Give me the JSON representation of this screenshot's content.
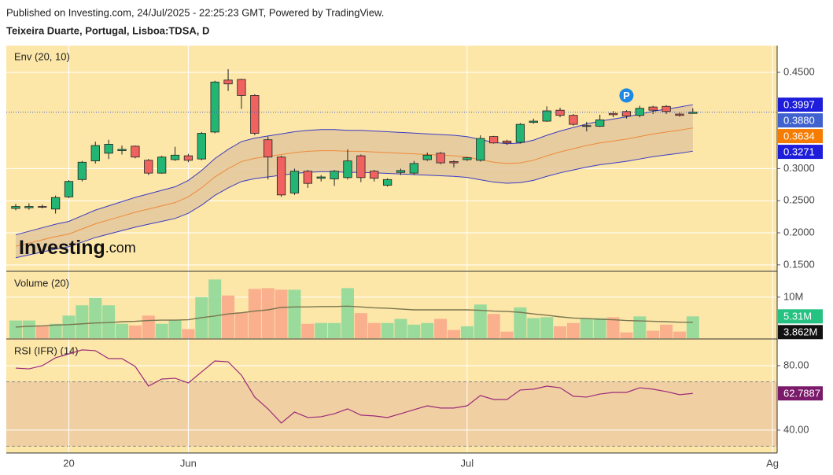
{
  "header": {
    "published": "Published on Investing.com, 24/Jul/2025 - 22:25:23 GMT, Powered by TradingView.",
    "instrument": "Teixeira Duarte, Portugal, Lisboa:TDSA, D"
  },
  "logo": {
    "brand": "Investing",
    "suffix": ".com"
  },
  "chart_data": [
    {
      "type": "candlestick",
      "title": "Env (20, 10)",
      "xlim": [
        -0.71,
        57.35
      ],
      "xticks": [
        {
          "value": 4,
          "label": "20"
        },
        {
          "value": 13,
          "label": "Jun"
        },
        {
          "value": 34,
          "label": "Jul"
        },
        {
          "value": 57,
          "label": "Ag"
        }
      ],
      "ylim": [
        0.1412,
        0.4917
      ],
      "yticks": [
        {
          "value": 0.45,
          "label": "0.4500"
        },
        {
          "value": 0.3,
          "label": "0.3000"
        },
        {
          "value": 0.25,
          "label": "0.2500"
        },
        {
          "value": 0.2,
          "label": "0.2000"
        },
        {
          "value": 0.15,
          "label": "0.1500"
        }
      ],
      "colors": {
        "up": "#22b573",
        "down": "#f0625f"
      },
      "open": [
        0.238,
        0.239,
        0.241,
        0.237,
        0.256,
        0.283,
        0.312,
        0.324,
        0.328,
        0.335,
        0.313,
        0.293,
        0.314,
        0.32,
        0.315,
        0.357,
        0.438,
        0.439,
        0.414,
        0.345,
        0.318,
        0.262,
        0.296,
        0.285,
        0.284,
        0.286,
        0.32,
        0.296,
        0.274,
        0.294,
        0.293,
        0.314,
        0.324,
        0.311,
        0.314,
        0.313,
        0.35,
        0.343,
        0.341,
        0.372,
        0.374,
        0.391,
        0.383,
        0.366,
        0.366,
        0.386,
        0.389,
        0.383,
        0.396,
        0.397,
        0.385,
        0.386
      ],
      "high": [
        0.245,
        0.246,
        0.244,
        0.258,
        0.282,
        0.312,
        0.342,
        0.345,
        0.336,
        0.336,
        0.315,
        0.32,
        0.334,
        0.323,
        0.357,
        0.437,
        0.455,
        0.44,
        0.416,
        0.35,
        0.32,
        0.3,
        0.298,
        0.29,
        0.298,
        0.33,
        0.322,
        0.298,
        0.285,
        0.3,
        0.312,
        0.325,
        0.326,
        0.313,
        0.318,
        0.352,
        0.351,
        0.345,
        0.371,
        0.378,
        0.397,
        0.395,
        0.385,
        0.373,
        0.384,
        0.39,
        0.391,
        0.398,
        0.398,
        0.399,
        0.387,
        0.394
      ],
      "low": [
        0.235,
        0.236,
        0.238,
        0.23,
        0.254,
        0.28,
        0.308,
        0.315,
        0.322,
        0.316,
        0.29,
        0.292,
        0.312,
        0.31,
        0.313,
        0.355,
        0.421,
        0.393,
        0.352,
        0.283,
        0.256,
        0.259,
        0.27,
        0.28,
        0.273,
        0.283,
        0.279,
        0.28,
        0.272,
        0.29,
        0.29,
        0.312,
        0.307,
        0.302,
        0.312,
        0.311,
        0.339,
        0.337,
        0.339,
        0.37,
        0.373,
        0.38,
        0.367,
        0.358,
        0.365,
        0.38,
        0.378,
        0.38,
        0.385,
        0.385,
        0.381,
        0.386
      ],
      "close": [
        0.241,
        0.241,
        0.24,
        0.255,
        0.28,
        0.31,
        0.336,
        0.338,
        0.33,
        0.318,
        0.293,
        0.318,
        0.321,
        0.313,
        0.355,
        0.435,
        0.432,
        0.414,
        0.355,
        0.318,
        0.259,
        0.296,
        0.277,
        0.287,
        0.296,
        0.312,
        0.286,
        0.285,
        0.283,
        0.297,
        0.308,
        0.321,
        0.309,
        0.309,
        0.317,
        0.347,
        0.34,
        0.34,
        0.369,
        0.374,
        0.39,
        0.383,
        0.369,
        0.367,
        0.376,
        0.384,
        0.382,
        0.394,
        0.391,
        0.389,
        0.383,
        0.388
      ],
      "envelope": {
        "basis": [
          0.179,
          0.184,
          0.189,
          0.194,
          0.198,
          0.206,
          0.214,
          0.22,
          0.226,
          0.232,
          0.237,
          0.242,
          0.247,
          0.256,
          0.27,
          0.287,
          0.3,
          0.311,
          0.316,
          0.319,
          0.322,
          0.325,
          0.327,
          0.328,
          0.328,
          0.327,
          0.327,
          0.326,
          0.325,
          0.324,
          0.323,
          0.322,
          0.321,
          0.32,
          0.318,
          0.314,
          0.31,
          0.308,
          0.309,
          0.313,
          0.32,
          0.326,
          0.331,
          0.336,
          0.34,
          0.343,
          0.346,
          0.35,
          0.354,
          0.357,
          0.36,
          0.3634
        ],
        "upper": [
          0.1969,
          0.2024,
          0.2079,
          0.2134,
          0.2178,
          0.2266,
          0.2354,
          0.242,
          0.2486,
          0.2552,
          0.2607,
          0.2662,
          0.2717,
          0.2816,
          0.297,
          0.3157,
          0.33,
          0.3421,
          0.3476,
          0.3509,
          0.3542,
          0.3575,
          0.3597,
          0.3608,
          0.3608,
          0.3597,
          0.3597,
          0.3586,
          0.3575,
          0.3564,
          0.3553,
          0.3542,
          0.3531,
          0.352,
          0.3498,
          0.3454,
          0.341,
          0.3388,
          0.3399,
          0.3443,
          0.352,
          0.3586,
          0.3641,
          0.3696,
          0.374,
          0.3773,
          0.3806,
          0.385,
          0.3894,
          0.3927,
          0.396,
          0.3997
        ],
        "lower": [
          0.1611,
          0.1656,
          0.1701,
          0.1746,
          0.1782,
          0.1854,
          0.1926,
          0.198,
          0.2034,
          0.2088,
          0.2133,
          0.2178,
          0.2223,
          0.2304,
          0.243,
          0.2583,
          0.27,
          0.2799,
          0.2844,
          0.2871,
          0.2898,
          0.2925,
          0.2943,
          0.2952,
          0.2952,
          0.2943,
          0.2943,
          0.2934,
          0.2925,
          0.2916,
          0.2907,
          0.2898,
          0.2889,
          0.288,
          0.2862,
          0.2826,
          0.279,
          0.2772,
          0.2781,
          0.2817,
          0.288,
          0.2934,
          0.2979,
          0.3024,
          0.306,
          0.3087,
          0.3114,
          0.315,
          0.3186,
          0.3213,
          0.324,
          0.3271
        ],
        "colors": {
          "basis": "#f08a3a",
          "band": "#3b3bc4",
          "fill": "#e2c79d"
        }
      },
      "price_labels": [
        {
          "value": 0.3997,
          "label": "0.3997",
          "color": "#1d1ddb"
        },
        {
          "value": 0.388,
          "label": "0.3880",
          "color": "#4062cf"
        },
        {
          "value": 0.3634,
          "label": "0.3634",
          "color": "#f57c00"
        },
        {
          "value": 0.3271,
          "label": "0.3271",
          "color": "#1d1ddb"
        }
      ],
      "marker": {
        "x": 46,
        "y": 0.414,
        "label": "P",
        "color": "#1e88e5"
      }
    },
    {
      "type": "bar",
      "title": "Volume (20)",
      "ylim": [
        0,
        16100000
      ],
      "yticks": [
        {
          "value": 10000000,
          "label": "10M"
        }
      ],
      "colors": {
        "up": "#8fd99a",
        "down": "#f9a98a",
        "ma": "#7a7650"
      },
      "values": [
        4300000,
        4300000,
        2900000,
        3500000,
        5500000,
        8000000,
        9800000,
        8000000,
        3500000,
        3100000,
        5500000,
        3500000,
        4500000,
        2200000,
        10000000,
        14300000,
        10400000,
        6300000,
        12000000,
        12200000,
        11800000,
        11800000,
        3500000,
        3700000,
        3700000,
        12200000,
        6100000,
        3700000,
        3700000,
        4700000,
        3300000,
        3700000,
        4700000,
        2000000,
        2900000,
        8200000,
        5900000,
        1600000,
        7500000,
        4900000,
        5100000,
        2900000,
        3700000,
        4700000,
        4900000,
        5100000,
        1400000,
        5300000,
        1800000,
        3300000,
        1600000,
        5310000
      ],
      "ma": [
        2700000,
        2900000,
        3000000,
        3200000,
        3300000,
        3500000,
        3700000,
        3800000,
        4000000,
        4100000,
        4300000,
        4400000,
        4400000,
        4500000,
        5000000,
        5400000,
        5900000,
        6200000,
        6600000,
        6900000,
        7500000,
        7600000,
        7600000,
        7700000,
        7700000,
        7800000,
        7600000,
        7400000,
        7300000,
        7100000,
        6900000,
        6900000,
        6900000,
        6900000,
        6900000,
        6800000,
        6600000,
        6500000,
        6300000,
        5900000,
        5600000,
        5200000,
        4900000,
        4800000,
        4600000,
        4500000,
        4300000,
        4200000,
        4100000,
        4000000,
        3900000,
        3862000
      ],
      "last_labels": [
        {
          "value": 5310000,
          "label": "5.31M",
          "color": "#26c281"
        },
        {
          "value": 3862000,
          "label": "3.862M",
          "color": "#111111"
        }
      ]
    },
    {
      "type": "line",
      "title": "RSI (IFR) (14)",
      "ylim": [
        26.3,
        96.1
      ],
      "yticks": [
        {
          "value": 80,
          "label": "80.00"
        },
        {
          "value": 40,
          "label": "40.00"
        }
      ],
      "bands": [
        70,
        30
      ],
      "colors": {
        "line": "#9c2a7a",
        "band": "#f0cfa2"
      },
      "values": [
        78.5,
        78,
        80,
        84.9,
        87.3,
        89.8,
        89.3,
        84.4,
        84.4,
        79.5,
        67.3,
        71.7,
        72.2,
        69.3,
        76.1,
        82.9,
        82.4,
        74.1,
        60.5,
        53.2,
        44.4,
        51.2,
        47.8,
        48.3,
        50.2,
        53.2,
        49.3,
        48.8,
        47.8,
        50.2,
        52.7,
        55.1,
        53.7,
        53.7,
        55.1,
        61.5,
        59.0,
        59.0,
        64.9,
        65.4,
        67.3,
        66.3,
        61.0,
        60.5,
        62.4,
        63.4,
        63.4,
        66.3,
        65.4,
        63.9,
        62.0,
        62.7887
      ],
      "last_labels": [
        {
          "value": 62.7887,
          "label": "62.7887",
          "color": "#7b1a6a"
        }
      ]
    }
  ]
}
